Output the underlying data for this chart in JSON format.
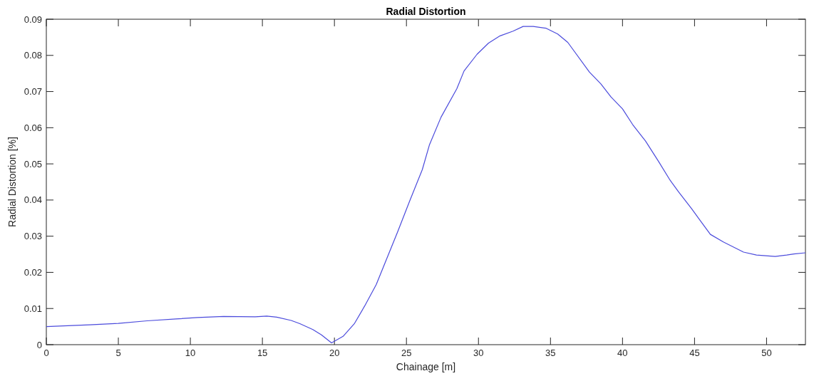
{
  "chart_data": {
    "type": "line",
    "title": "Radial Distortion",
    "xlabel": "Chainage [m]",
    "ylabel": "Radial Distortion [%]",
    "xlim": [
      0,
      52.7
    ],
    "xticks": [
      0,
      5,
      10,
      15,
      20,
      25,
      30,
      35,
      40,
      45,
      50
    ],
    "ylim": [
      0,
      0.09
    ],
    "yticks": [
      {
        "value": 0,
        "label": "0"
      },
      0.01,
      0.02,
      0.03,
      0.04,
      0.05,
      0.06,
      0.07,
      0.08,
      0.09
    ],
    "grid": false,
    "marker": "none",
    "line_style": "solid",
    "series": [
      {
        "color": "#4b4bdc",
        "x": [
          0,
          3,
          5,
          7,
          9,
          10.5,
          12.3,
          14.5,
          15.3,
          16,
          17,
          17.6,
          18.5,
          19.1,
          19.8,
          20.6,
          21.4,
          22.1,
          22.9,
          24.4,
          25.2,
          26.1,
          26.6,
          27.4,
          28.5,
          29,
          29.9,
          30.7,
          31.5,
          32.4,
          33.1,
          33.8,
          34.7,
          35.5,
          36.2,
          37.7,
          38.5,
          39.2,
          40,
          40.7,
          41.6,
          42.5,
          43.3,
          43.9,
          44.8,
          45.4,
          46.1,
          47,
          48.4,
          49.3,
          50.6,
          51.4,
          51.9,
          52.7
        ],
        "values": [
          0.005,
          0.0055,
          0.0059,
          0.0066,
          0.0071,
          0.0075,
          0.0078,
          0.0077,
          0.0079,
          0.0076,
          0.0067,
          0.0058,
          0.0042,
          0.0027,
          0.0005,
          0.0023,
          0.0059,
          0.0107,
          0.0166,
          0.0313,
          0.0395,
          0.0484,
          0.0553,
          0.0629,
          0.0708,
          0.0757,
          0.0803,
          0.0834,
          0.0854,
          0.0867,
          0.088,
          0.088,
          0.0875,
          0.0859,
          0.0836,
          0.0754,
          0.0721,
          0.0685,
          0.0652,
          0.0609,
          0.0563,
          0.0507,
          0.0455,
          0.0422,
          0.0376,
          0.0343,
          0.0305,
          0.0284,
          0.0256,
          0.0248,
          0.0244,
          0.0248,
          0.0251,
          0.0254
        ]
      }
    ]
  }
}
